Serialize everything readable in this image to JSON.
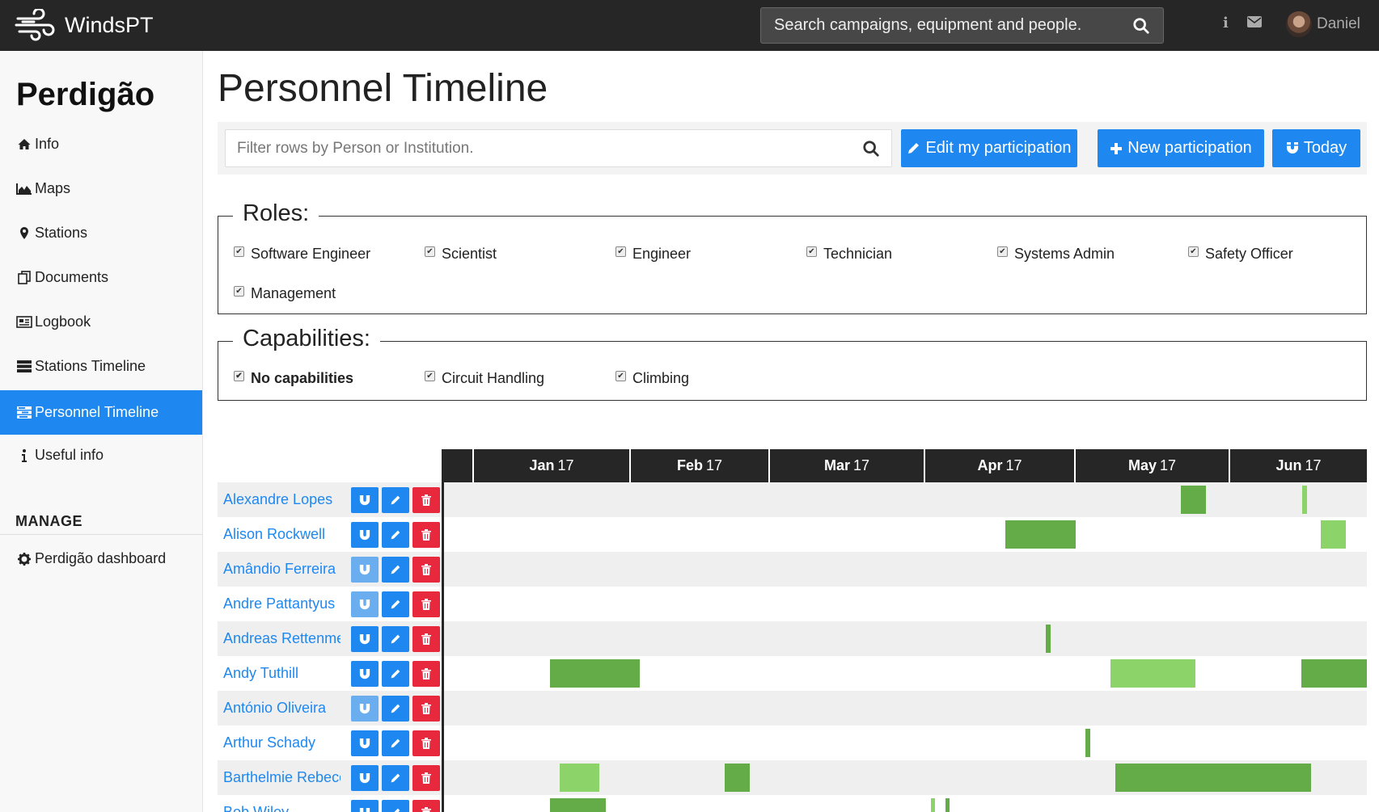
{
  "navbar": {
    "brand": "WindsPT",
    "search_placeholder": "Search campaigns, equipment  and people.",
    "user_name": "Daniel",
    "info_glyph": "i"
  },
  "sidebar": {
    "title": "Perdigão",
    "items": [
      {
        "label": "Info",
        "icon": "home-icon"
      },
      {
        "label": "Maps",
        "icon": "area-chart-icon"
      },
      {
        "label": "Stations",
        "icon": "map-marker-icon"
      },
      {
        "label": "Documents",
        "icon": "documents-icon"
      },
      {
        "label": "Logbook",
        "icon": "newspaper-icon"
      },
      {
        "label": "Stations Timeline",
        "icon": "tasks-icon"
      },
      {
        "label": "Personnel Timeline",
        "icon": "tasks-icon",
        "active": true
      },
      {
        "label": "Useful info",
        "icon": "info-icon"
      }
    ],
    "manage_heading": "MANAGE",
    "manage_items": [
      {
        "label": "Perdigão dashboard",
        "icon": "gear-icon"
      }
    ]
  },
  "main": {
    "title": "Personnel Timeline",
    "filter_placeholder": "Filter rows by Person or Institution.",
    "buttons": {
      "edit_participation": "Edit my participation",
      "new_participation": "New participation",
      "today": "Today"
    },
    "roles": {
      "legend": "Roles:",
      "options": [
        {
          "label": "Software Engineer",
          "checked": true
        },
        {
          "label": "Scientist",
          "checked": true
        },
        {
          "label": "Engineer",
          "checked": true
        },
        {
          "label": "Technician",
          "checked": true
        },
        {
          "label": "Systems Admin",
          "checked": true
        },
        {
          "label": "Safety Officer",
          "checked": true
        },
        {
          "label": "Management",
          "checked": true
        }
      ]
    },
    "capabilities": {
      "legend": "Capabilities:",
      "options": [
        {
          "label": "No capabilities",
          "checked": true,
          "bold": true
        },
        {
          "label": "Circuit Handling",
          "checked": true
        },
        {
          "label": "Climbing",
          "checked": true
        }
      ]
    }
  },
  "timeline": {
    "months": [
      {
        "name": "Jan",
        "year": "17"
      },
      {
        "name": "Feb",
        "year": "17"
      },
      {
        "name": "Mar",
        "year": "17"
      },
      {
        "name": "Apr",
        "year": "17"
      },
      {
        "name": "May",
        "year": "17"
      },
      {
        "name": "Jun",
        "year": "17"
      }
    ],
    "people": [
      {
        "name": "Alexandre Lopes",
        "light_magnet": false
      },
      {
        "name": "Alison Rockwell",
        "light_magnet": false
      },
      {
        "name": "Amândio Ferreira",
        "light_magnet": true
      },
      {
        "name": "Andre Pattantyus",
        "light_magnet": true
      },
      {
        "name": "Andreas Rettenmeier",
        "light_magnet": false
      },
      {
        "name": "Andy Tuthill",
        "light_magnet": false
      },
      {
        "name": "António Oliveira",
        "light_magnet": true
      },
      {
        "name": "Arthur Schady",
        "light_magnet": false
      },
      {
        "name": "Barthelmie Rebecca",
        "light_magnet": false
      },
      {
        "name": "Bob Wiley",
        "light_magnet": false
      }
    ]
  },
  "colors": {
    "accent": "#1e88f0",
    "danger": "#e8283c",
    "bar_dark": "#64ac47",
    "bar_light": "#8cd46a",
    "navbar": "#262626"
  }
}
